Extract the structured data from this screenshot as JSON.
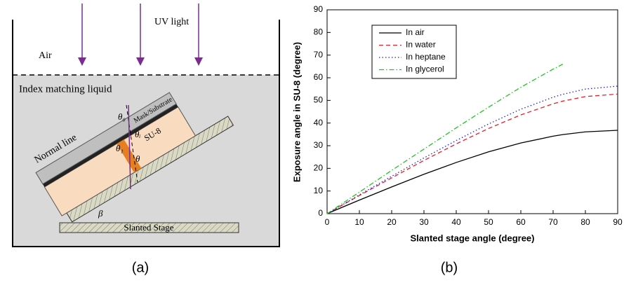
{
  "diagram": {
    "uv_light": "UV light",
    "air": "Air",
    "liquid": "Index matching liquid",
    "mask": "Mask/Substrate",
    "su8": "SU-8",
    "normal": "Normal line",
    "stage": "Slanted Stage",
    "theta_0": "θ₀",
    "theta_i": "θᵢ",
    "theta_1": "θ₁",
    "theta": "θ",
    "beta": "β"
  },
  "panel_labels": [
    "(a)",
    "(b)"
  ],
  "chart_data": {
    "type": "line",
    "xlabel": "Slanted stage angle (degree)",
    "ylabel": "Exposure angle in SU-8 (degree)",
    "x": [
      0,
      10,
      20,
      30,
      40,
      50,
      60,
      70,
      73,
      80,
      90
    ],
    "series": [
      {
        "name": "In air",
        "color": "#000000",
        "dash": "none",
        "values": [
          0,
          6.0,
          11.8,
          17.4,
          22.6,
          27.3,
          31.2,
          34.2,
          34.9,
          36.1,
          36.8
        ]
      },
      {
        "name": "In water",
        "color": "#e8202a",
        "dash": "6 4",
        "values": [
          0,
          8.0,
          15.8,
          23.5,
          30.8,
          37.6,
          43.6,
          48.5,
          49.7,
          51.7,
          52.8
        ]
      },
      {
        "name": "In heptane",
        "color": "#2020d0",
        "dash": "1.5 3",
        "values": [
          0,
          8.3,
          16.5,
          24.6,
          32.3,
          39.6,
          46.1,
          51.4,
          52.7,
          55.0,
          56.3
        ]
      },
      {
        "name": "In glycerol",
        "color": "#22c422",
        "dash": "7 3 1.5 3",
        "values": [
          0,
          9.5,
          19.1,
          28.5,
          37.9,
          47.0,
          55.8,
          63.8,
          66.0,
          null,
          null
        ]
      }
    ],
    "xlim": [
      0,
      90
    ],
    "xticks": [
      0,
      10,
      20,
      30,
      40,
      50,
      60,
      70,
      80,
      90
    ],
    "ylim": [
      0,
      90
    ],
    "yticks": [
      0,
      10,
      20,
      30,
      40,
      50,
      60,
      70,
      80,
      90
    ],
    "legend": "upper left"
  }
}
